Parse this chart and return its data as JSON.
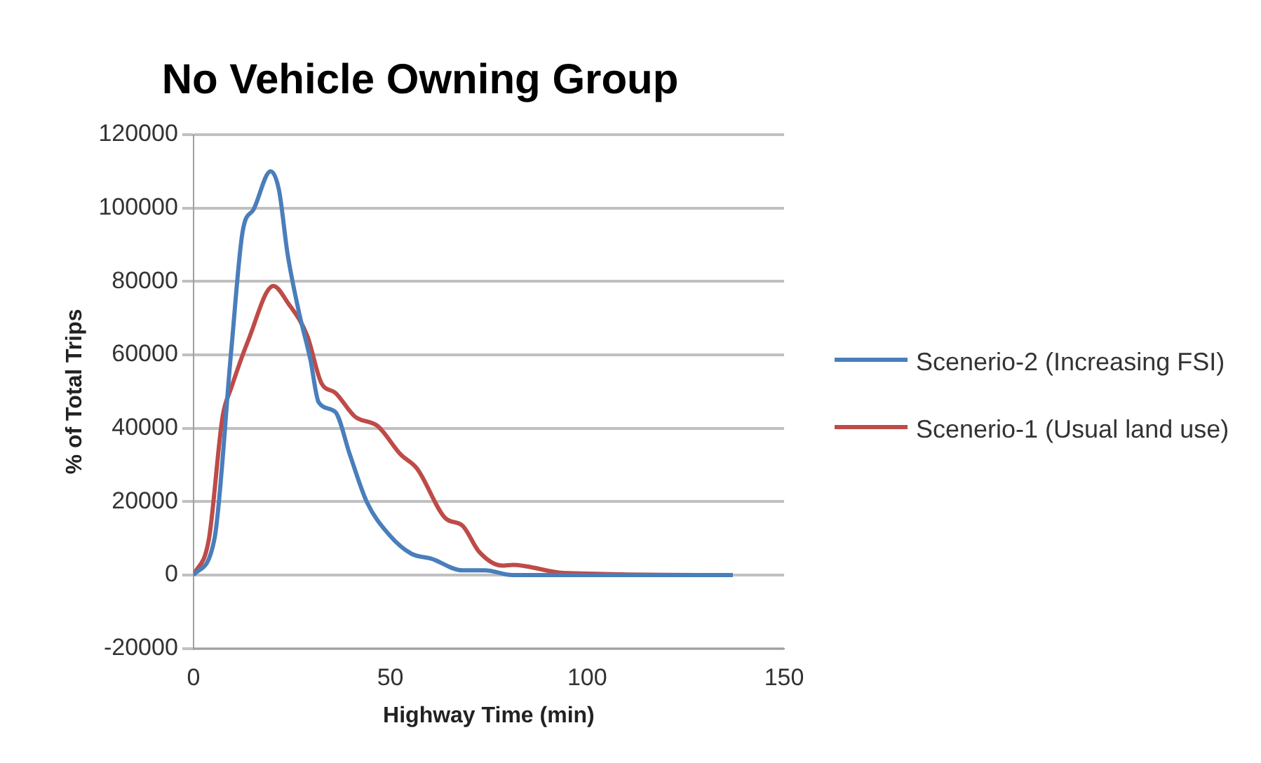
{
  "chart_data": {
    "type": "line",
    "title": "No Vehicle Owning Group",
    "xlabel": "Highway Time (min)",
    "ylabel": "% of Total Trips",
    "xlim": [
      0,
      150
    ],
    "xticks": [
      0,
      50,
      100,
      150
    ],
    "ylim": [
      -20000,
      120000
    ],
    "yticks": [
      -20000,
      0,
      20000,
      40000,
      60000,
      80000,
      100000,
      120000
    ],
    "grid": "y",
    "legend": "right",
    "marker": "none",
    "line_style": "solid",
    "series": [
      {
        "name": "Scenerio-2 (Increasing FSI)",
        "color": "#4a7ebb",
        "x": [
          0,
          5.3,
          9.6,
          12.5,
          15.3,
          19.6,
          21.7,
          23.9,
          26.8,
          29.7,
          31.8,
          36,
          39.7,
          44,
          49.7,
          55.4,
          60.4,
          68.3,
          74,
          81,
          90,
          100,
          137
        ],
        "values": [
          0,
          9700,
          61300,
          93700,
          99700,
          110000,
          105000,
          87500,
          71600,
          58700,
          47100,
          44500,
          32900,
          20000,
          11000,
          5800,
          4500,
          1300,
          1300,
          0,
          0,
          0,
          0
        ]
      },
      {
        "name": "Scenerio-1 (Usual land use)",
        "color": "#be4b48",
        "x": [
          0,
          3.9,
          7.4,
          9.6,
          13.9,
          20.3,
          23.9,
          28.9,
          32.5,
          36,
          41,
          46.8,
          52.6,
          56.8,
          64,
          68.3,
          72.6,
          78.4,
          81.2,
          94,
          137
        ],
        "values": [
          0,
          9700,
          43200,
          51000,
          63900,
          78800,
          74300,
          65200,
          52300,
          49700,
          43200,
          40600,
          32900,
          29000,
          15500,
          13500,
          6300,
          2600,
          2800,
          600,
          0
        ]
      }
    ]
  }
}
